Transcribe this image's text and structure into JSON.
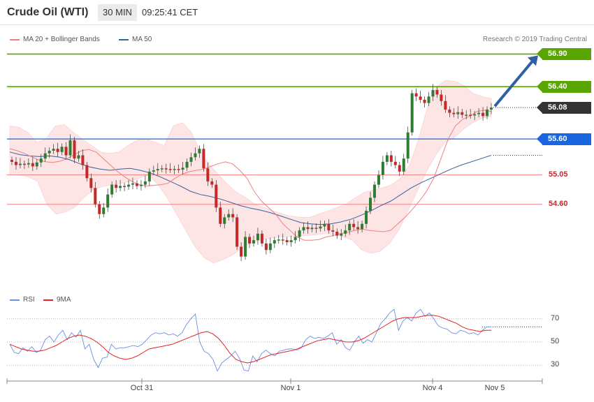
{
  "header": {
    "instrument": "Crude Oil (WTI)",
    "timeframe": "30 MIN",
    "time": "09:25:41 CET"
  },
  "legend": {
    "ma20_label": "MA 20 + Bollinger Bands",
    "ma50_label": "MA 50",
    "credit": "Research © 2019 Trading Central"
  },
  "rsi_legend": {
    "rsi_label": "RSI",
    "ma9_label": "9MA"
  },
  "colors": {
    "bullish": "#2e7d32",
    "bearish": "#c62828",
    "ma20": "#f08080",
    "ma50": "#3a5f9e",
    "band_fill": "#fde3e3",
    "target_line": "#5aa600",
    "pivot_line": "#1a66e0",
    "support_line": "#f08080",
    "price_tag": "#333333",
    "arrow": "#2f5fa6",
    "rsi_line": "#6b8ee8",
    "rsi_ma": "#e32222"
  },
  "levels": [
    {
      "value": 56.9,
      "label": "56.90",
      "kind": "target"
    },
    {
      "value": 56.4,
      "label": "56.40",
      "kind": "target"
    },
    {
      "value": 56.08,
      "label": "56.08",
      "kind": "last"
    },
    {
      "value": 55.6,
      "label": "55.60",
      "kind": "pivot"
    },
    {
      "value": 55.05,
      "label": "55.05",
      "kind": "support"
    },
    {
      "value": 54.6,
      "label": "54.60",
      "kind": "support"
    }
  ],
  "chart_data": {
    "type": "candlestick",
    "title": "Crude Oil (WTI)",
    "price_range": [
      53.4,
      57.3
    ],
    "x_labels": [
      "Oct 31",
      "Nov 1",
      "Nov 4",
      "Nov 5"
    ],
    "rsi_ticks": [
      "70",
      "50",
      "30"
    ],
    "rsi_range": [
      20,
      80
    ],
    "closes": [
      55.25,
      55.2,
      55.22,
      55.21,
      55.23,
      55.18,
      55.24,
      55.3,
      55.38,
      55.42,
      55.45,
      55.4,
      55.48,
      55.35,
      55.58,
      55.3,
      55.35,
      55.2,
      55.0,
      54.85,
      54.6,
      54.45,
      54.55,
      54.75,
      54.9,
      54.85,
      54.88,
      54.87,
      54.9,
      54.92,
      54.88,
      54.9,
      54.95,
      55.1,
      55.12,
      55.14,
      55.15,
      55.14,
      55.13,
      55.14,
      55.13,
      55.16,
      55.25,
      55.32,
      55.38,
      55.45,
      55.15,
      54.95,
      54.9,
      54.55,
      54.3,
      54.4,
      54.45,
      54.4,
      53.95,
      53.8,
      54.1,
      54.0,
      54.05,
      54.15,
      54.0,
      53.9,
      54.0,
      54.05,
      54.06,
      54.05,
      54.02,
      54.05,
      54.1,
      54.2,
      54.25,
      54.22,
      54.24,
      54.23,
      54.26,
      54.3,
      54.2,
      54.18,
      54.12,
      54.15,
      54.2,
      54.3,
      54.25,
      54.22,
      54.3,
      54.5,
      54.7,
      54.9,
      55.05,
      55.25,
      55.35,
      55.25,
      55.2,
      55.1,
      55.3,
      55.7,
      56.3,
      56.25,
      56.2,
      56.15,
      56.25,
      56.35,
      56.28,
      56.18,
      56.05,
      56.0,
      55.98,
      56.01,
      55.97,
      55.97,
      55.96,
      55.98,
      56.0,
      55.95,
      56.05,
      56.08
    ],
    "ma20": [
      55.45,
      55.42,
      55.38,
      55.33,
      55.28,
      55.25,
      55.24,
      55.26,
      55.3,
      55.36,
      55.42,
      55.44,
      55.4,
      55.3,
      55.2,
      55.1,
      55.02,
      54.95,
      54.9,
      54.88,
      54.89,
      54.9,
      54.92,
      55.0,
      55.06,
      55.1,
      55.12,
      55.14,
      55.18,
      55.22,
      55.25,
      55.22,
      55.12,
      55.0,
      54.8,
      54.65,
      54.55,
      54.45,
      54.3,
      54.2,
      54.1,
      54.05,
      54.05,
      54.06,
      54.1,
      54.12,
      54.15,
      54.17,
      54.2,
      54.22,
      54.2,
      54.19,
      54.18,
      54.2,
      54.3,
      54.4,
      54.52,
      54.65,
      54.8,
      55.0,
      55.3,
      55.6,
      55.8,
      55.9,
      55.95,
      56.02,
      56.04,
      56.02
    ],
    "ma50": [
      55.4,
      55.36,
      55.34,
      55.33,
      55.34,
      55.32,
      55.28,
      55.22,
      55.17,
      55.14,
      55.12,
      55.14,
      55.15,
      55.12,
      55.08,
      55.02,
      54.95,
      54.88,
      54.8,
      54.75,
      54.72,
      54.68,
      54.63,
      54.58,
      54.54,
      54.51,
      54.47,
      54.42,
      54.37,
      54.32,
      54.3,
      54.29,
      54.3,
      54.33,
      54.37,
      54.43,
      54.5,
      54.58,
      54.65,
      54.75,
      54.85,
      54.93,
      55.0,
      55.07,
      55.14,
      55.2,
      55.25,
      55.3,
      55.35
    ],
    "bb_upper": [
      55.8,
      55.78,
      55.7,
      55.55,
      55.6,
      55.8,
      55.82,
      55.7,
      55.6,
      55.5,
      55.4,
      55.38,
      55.4,
      55.5,
      55.58,
      55.6,
      55.55,
      55.5,
      55.8,
      55.85,
      55.7,
      55.4,
      55.2,
      55.05,
      54.9,
      54.78,
      54.7,
      54.6,
      54.55,
      54.5,
      54.45,
      54.42,
      54.4,
      54.4,
      54.45,
      54.5,
      54.55,
      54.6,
      54.7,
      54.78,
      54.82,
      54.85,
      54.9,
      55.0,
      55.2,
      55.6,
      56.1,
      56.4,
      56.5,
      56.48,
      56.42,
      56.3,
      56.25,
      56.22
    ],
    "bb_lower": [
      55.05,
      55.05,
      55.02,
      54.95,
      54.6,
      54.45,
      54.48,
      54.55,
      54.7,
      54.82,
      54.87,
      54.9,
      54.92,
      54.95,
      55.0,
      55.05,
      54.9,
      54.7,
      54.45,
      54.2,
      53.95,
      53.78,
      53.7,
      53.75,
      53.82,
      53.92,
      54.0,
      54.05,
      54.08,
      54.1,
      54.1,
      54.11,
      54.12,
      54.13,
      54.15,
      54.14,
      54.1,
      54.05,
      53.9,
      53.85,
      53.88,
      54.0,
      54.2,
      54.5,
      54.8,
      55.1,
      55.35,
      55.55,
      55.62,
      55.75,
      55.85,
      55.92,
      55.94
    ],
    "rsi": [
      48,
      41,
      40,
      45,
      42,
      46,
      41,
      43,
      52,
      55,
      50,
      56,
      60,
      52,
      58,
      54,
      60,
      44,
      48,
      35,
      28,
      36,
      37,
      48,
      44,
      45,
      45,
      46,
      47,
      46,
      48,
      52,
      56,
      58,
      57,
      58,
      56,
      57,
      55,
      58,
      65,
      70,
      74,
      50,
      42,
      40,
      35,
      25,
      32,
      35,
      38,
      42,
      36,
      26,
      25,
      38,
      33,
      40,
      43,
      40,
      38,
      42,
      43,
      44,
      44,
      43,
      45,
      52,
      55,
      53,
      54,
      53,
      55,
      58,
      48,
      52,
      45,
      43,
      50,
      55,
      49,
      52,
      50,
      58,
      66,
      70,
      75,
      78,
      60,
      68,
      71,
      68,
      75,
      78,
      72,
      75,
      70,
      64,
      62,
      61,
      58,
      57,
      60,
      59,
      57,
      58,
      56,
      60,
      63,
      63
    ],
    "rsi_ma": [
      48,
      46,
      44,
      43,
      42,
      42,
      43,
      45,
      47,
      50,
      53,
      55,
      56,
      55,
      53,
      50,
      46,
      41,
      38,
      36,
      35,
      36,
      38,
      41,
      44,
      45,
      46,
      47,
      48,
      50,
      52,
      54,
      56,
      58,
      59,
      57,
      53,
      47,
      40,
      35,
      33,
      32,
      33,
      35,
      37,
      39,
      40,
      41,
      42,
      43,
      45,
      47,
      49,
      51,
      52,
      53,
      52,
      51,
      50,
      50,
      51,
      53,
      56,
      59,
      62,
      65,
      68,
      70,
      71,
      71,
      71,
      72,
      73,
      73,
      72,
      70,
      68,
      66,
      63,
      61,
      60,
      59,
      60,
      60
    ]
  }
}
